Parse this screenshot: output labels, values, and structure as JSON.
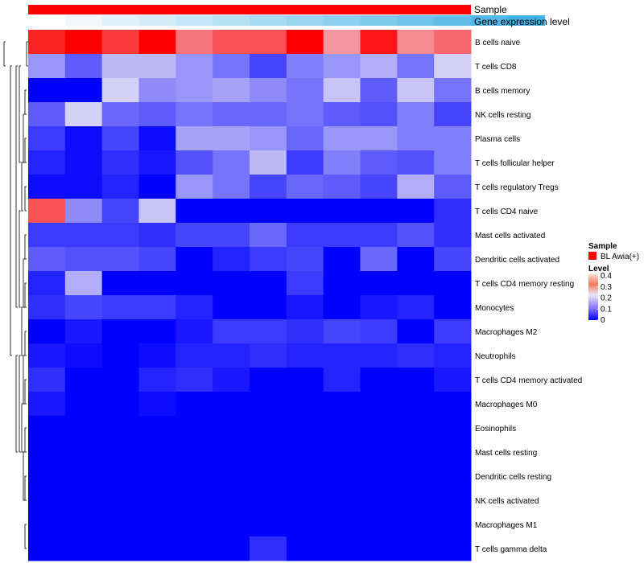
{
  "chart_data": {
    "type": "heatmap",
    "annotation_labels": [
      "Sample",
      "Gene expression level"
    ],
    "sample_annotation_color": "#ff0000",
    "gene_expression_colors": [
      "#ffffff",
      "#f0f8fc",
      "#e2f2fa",
      "#d3ecf8",
      "#c5e6f6",
      "#b7e0f4",
      "#a8dbf2",
      "#9ad5f0",
      "#8ccfee",
      "#7dc9ec",
      "#6fc3ea",
      "#61bde8",
      "#52b7e6",
      "#44b1e4"
    ],
    "rows": [
      "B cells naive",
      "T cells CD8",
      "B cells memory",
      "NK cells resting",
      "Plasma cells",
      "T cells follicular helper",
      "T cells regulatory  Tregs",
      "T cells CD4 naive",
      "Mast cells activated",
      "Dendritic cells activated",
      "T cells CD4 memory resting",
      "Monocytes",
      "Macrophages M2",
      "Neutrophils",
      "T cells CD4 memory activated",
      "Macrophages M0",
      "Eosinophils",
      "Mast cells resting",
      "Dendritic cells resting",
      "NK cells activated",
      "Macrophages M1",
      "T cells gamma delta"
    ],
    "values": [
      [
        0.37,
        0.4,
        0.35,
        0.4,
        0.3,
        0.33,
        0.33,
        0.4,
        0.27,
        0.38,
        0.28,
        0.31
      ],
      [
        0.13,
        0.08,
        0.16,
        0.16,
        0.13,
        0.1,
        0.06,
        0.11,
        0.13,
        0.15,
        0.1,
        0.18
      ],
      [
        0.0,
        0.0,
        0.18,
        0.12,
        0.13,
        0.14,
        0.12,
        0.1,
        0.17,
        0.08,
        0.17,
        0.1
      ],
      [
        0.08,
        0.18,
        0.09,
        0.08,
        0.1,
        0.09,
        0.09,
        0.1,
        0.08,
        0.07,
        0.11,
        0.06
      ],
      [
        0.05,
        0.01,
        0.06,
        0.01,
        0.14,
        0.14,
        0.13,
        0.09,
        0.13,
        0.13,
        0.11,
        0.11
      ],
      [
        0.03,
        0.01,
        0.04,
        0.02,
        0.07,
        0.1,
        0.16,
        0.05,
        0.11,
        0.08,
        0.07,
        0.11
      ],
      [
        0.01,
        0.01,
        0.03,
        0.0,
        0.13,
        0.1,
        0.06,
        0.09,
        0.08,
        0.06,
        0.15,
        0.08
      ],
      [
        0.33,
        0.12,
        0.06,
        0.17,
        0.0,
        0.0,
        0.0,
        0.0,
        0.0,
        0.0,
        0.0,
        0.04
      ],
      [
        0.05,
        0.05,
        0.05,
        0.04,
        0.06,
        0.06,
        0.09,
        0.05,
        0.05,
        0.05,
        0.07,
        0.04
      ],
      [
        0.08,
        0.07,
        0.07,
        0.06,
        0.0,
        0.03,
        0.05,
        0.06,
        0.0,
        0.09,
        0.0,
        0.06
      ],
      [
        0.03,
        0.15,
        0.0,
        0.0,
        0.0,
        0.0,
        0.0,
        0.05,
        0.0,
        0.0,
        0.0,
        0.0
      ],
      [
        0.04,
        0.06,
        0.05,
        0.05,
        0.03,
        0.0,
        0.0,
        0.02,
        0.0,
        0.02,
        0.03,
        0.0
      ],
      [
        0.0,
        0.02,
        0.0,
        0.0,
        0.02,
        0.05,
        0.05,
        0.04,
        0.06,
        0.05,
        0.0,
        0.05
      ],
      [
        0.02,
        0.01,
        0.0,
        0.01,
        0.03,
        0.03,
        0.04,
        0.03,
        0.03,
        0.03,
        0.04,
        0.03
      ],
      [
        0.04,
        0.0,
        0.0,
        0.03,
        0.04,
        0.02,
        0.0,
        0.0,
        0.03,
        0.0,
        0.0,
        0.02
      ],
      [
        0.02,
        0.0,
        0.0,
        0.01,
        0.0,
        0.0,
        0.0,
        0.0,
        0.0,
        0.0,
        0.0,
        0.0
      ],
      [
        0.0,
        0.0,
        0.0,
        0.0,
        0.0,
        0.0,
        0.0,
        0.0,
        0.0,
        0.0,
        0.0,
        0.0
      ],
      [
        0.0,
        0.0,
        0.0,
        0.0,
        0.0,
        0.0,
        0.0,
        0.0,
        0.0,
        0.0,
        0.0,
        0.0
      ],
      [
        0.0,
        0.0,
        0.0,
        0.0,
        0.0,
        0.0,
        0.0,
        0.0,
        0.0,
        0.0,
        0.0,
        0.0
      ],
      [
        0.0,
        0.0,
        0.0,
        0.0,
        0.0,
        0.0,
        0.0,
        0.0,
        0.0,
        0.0,
        0.0,
        0.0
      ],
      [
        0.0,
        0.0,
        0.0,
        0.0,
        0.0,
        0.0,
        0.0,
        0.0,
        0.0,
        0.0,
        0.0,
        0.0
      ],
      [
        0.0,
        0.0,
        0.0,
        0.0,
        0.0,
        0.0,
        0.04,
        0.0,
        0.0,
        0.0,
        0.0,
        0.0
      ]
    ],
    "dendrogram": [
      [
        [
          0,
          1
        ]
      ],
      [
        [
          2,
          3
        ],
        [
          4,
          5
        ],
        [
          6,
          7
        ],
        [
          8,
          9
        ],
        [
          10,
          11
        ],
        [
          12,
          13
        ],
        [
          14,
          15
        ],
        [
          16,
          17
        ],
        [
          18,
          19
        ],
        [
          20,
          21
        ]
      ],
      [
        [
          3,
          5
        ],
        [
          9,
          11
        ],
        [
          13,
          15
        ],
        [
          17,
          19
        ]
      ],
      [
        [
          5,
          7
        ],
        [
          11,
          13
        ],
        [
          15,
          17
        ]
      ],
      [
        [
          1,
          5
        ],
        [
          7,
          11
        ],
        [
          13,
          17
        ]
      ],
      [
        [
          1,
          11
        ],
        [
          13,
          17
        ]
      ],
      [
        [
          1,
          13
        ]
      ],
      [
        [
          0,
          1
        ]
      ]
    ],
    "color_scale": {
      "min": 0,
      "max": 0.4,
      "stops": [
        {
          "value": 0,
          "color": "#0000ff"
        },
        {
          "value": 0.2,
          "color": "#ece7f5"
        },
        {
          "value": 0.4,
          "color": "#ff0000"
        }
      ]
    },
    "legend": {
      "sample_title": "Sample",
      "sample_entry": "BL Awia(+)",
      "level_title": "Level",
      "ticks": [
        "0.4",
        "0.3",
        "0.2",
        "0.1",
        "0"
      ]
    }
  }
}
